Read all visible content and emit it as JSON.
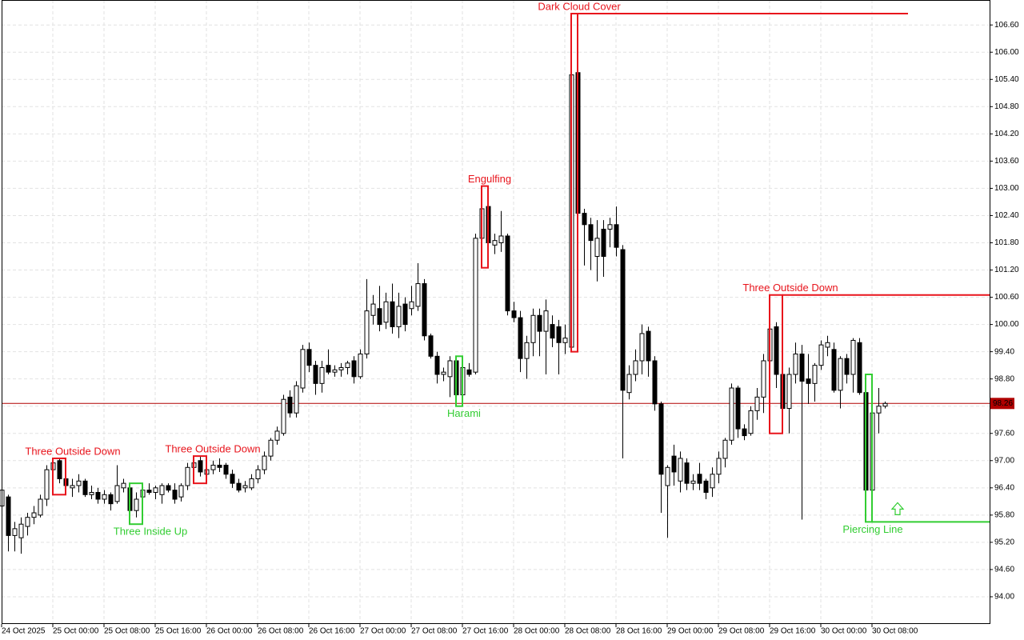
{
  "chart_data": {
    "type": "candlestick",
    "categories": [
      "24 Oct 2025",
      null,
      null,
      null,
      null,
      null,
      null,
      null,
      "25 Oct 00:00",
      null,
      null,
      null,
      null,
      null,
      null,
      null,
      "25 Oct 08:00",
      null,
      null,
      null,
      null,
      null,
      null,
      null,
      "25 Oct 16:00",
      null,
      null,
      null,
      null,
      null,
      null,
      null,
      "26 Oct 00:00",
      null,
      null,
      null,
      null,
      null,
      null,
      null,
      "26 Oct 08:00",
      null,
      null,
      null,
      null,
      null,
      null,
      null,
      "26 Oct 16:00",
      null,
      null,
      null,
      null,
      null,
      null,
      null,
      "27 Oct 00:00",
      null,
      null,
      null,
      null,
      null,
      null,
      null,
      "27 Oct 08:00",
      null,
      null,
      null,
      null,
      null,
      null,
      null,
      "27 Oct 16:00",
      null,
      null,
      null,
      null,
      null,
      null,
      null,
      "28 Oct 00:00",
      null,
      null,
      null,
      null,
      null,
      null,
      null,
      "28 Oct 08:00",
      null,
      null,
      null,
      null,
      null,
      null,
      null,
      "28 Oct 16:00",
      null,
      null,
      null,
      null,
      null,
      null,
      null,
      "29 Oct 00:00",
      null,
      null,
      null,
      null,
      null,
      null,
      null,
      "29 Oct 08:00",
      null,
      null,
      null,
      null,
      null,
      null,
      null,
      "29 Oct 16:00",
      null,
      null,
      null,
      null,
      null,
      null,
      null,
      "30 Oct 00:00",
      null,
      null,
      null,
      null,
      null,
      null,
      null,
      "30 Oct 08:00",
      null,
      null
    ],
    "open": [
      96.0,
      96.2,
      95.35,
      95.3,
      95.55,
      95.75,
      95.8,
      96.15,
      96.8,
      97.0,
      96.6,
      96.4,
      96.45,
      96.55,
      96.25,
      96.3,
      96.15,
      96.25,
      96.1,
      96.4,
      96.4,
      95.9,
      96.2,
      96.35,
      96.3,
      96.25,
      96.45,
      96.35,
      96.2,
      96.45,
      96.85,
      97.0,
      96.7,
      96.8,
      96.9,
      96.9,
      96.7,
      96.5,
      96.4,
      96.4,
      96.6,
      96.8,
      97.1,
      97.45,
      97.6,
      98.4,
      98.05,
      98.6,
      99.45,
      99.1,
      98.7,
      99.1,
      98.95,
      99.0,
      99.05,
      99.2,
      98.85,
      99.35,
      100.2,
      100.35,
      100.05,
      100.5,
      99.95,
      100.45,
      100.35,
      100.4,
      100.9,
      99.75,
      99.3,
      98.9,
      98.85,
      99.2,
      98.45,
      99.0,
      98.95,
      101.9,
      102.6,
      101.75,
      101.8,
      101.95,
      100.3,
      100.15,
      99.25,
      99.6,
      100.2,
      99.85,
      100.0,
      99.95,
      99.6,
      99.5,
      105.55,
      102.45,
      102.2,
      101.5,
      102.1,
      102.1,
      102.2,
      101.65,
      98.5,
      98.9,
      99.2,
      99.85,
      99.2,
      98.25,
      96.45,
      97.1,
      96.55,
      96.95,
      96.5,
      96.7,
      96.55,
      96.4,
      96.7,
      97.05,
      97.45,
      98.6,
      97.7,
      97.6,
      98.1,
      98.4,
      99.2,
      99.95,
      98.9,
      98.15,
      98.9,
      99.35,
      98.8,
      98.7,
      99.1,
      99.5,
      99.45,
      98.55,
      99.25,
      98.9,
      99.6,
      98.5,
      96.35,
      98.05,
      98.2
    ],
    "high": [
      96.45,
      96.25,
      95.65,
      95.75,
      95.85,
      96.0,
      96.25,
      96.9,
      97.05,
      97.05,
      96.75,
      96.6,
      96.7,
      96.6,
      96.45,
      96.4,
      96.35,
      96.3,
      96.9,
      96.6,
      96.5,
      96.3,
      96.45,
      96.5,
      96.45,
      96.5,
      96.5,
      96.5,
      96.5,
      96.95,
      97.05,
      97.1,
      96.9,
      97.0,
      97.05,
      96.95,
      96.8,
      96.6,
      96.55,
      96.7,
      96.9,
      97.2,
      97.5,
      97.75,
      98.45,
      98.55,
      98.75,
      99.55,
      99.6,
      99.2,
      99.2,
      99.45,
      99.1,
      99.15,
      99.2,
      99.3,
      99.45,
      101.0,
      100.65,
      100.85,
      100.7,
      100.9,
      100.7,
      100.6,
      100.85,
      101.35,
      101.0,
      99.8,
      99.4,
      99.05,
      99.3,
      99.3,
      99.15,
      99.15,
      102.0,
      102.7,
      103.05,
      102.0,
      102.5,
      102.0,
      100.5,
      100.3,
      99.75,
      100.35,
      100.35,
      100.55,
      100.2,
      100.1,
      100.0,
      106.85,
      106.85,
      102.55,
      102.35,
      102.3,
      102.3,
      102.35,
      102.6,
      101.75,
      99.1,
      99.45,
      100.0,
      99.95,
      99.3,
      98.3,
      96.9,
      97.35,
      97.2,
      97.05,
      96.7,
      96.95,
      96.6,
      96.85,
      97.2,
      97.5,
      98.7,
      98.65,
      97.8,
      98.2,
      98.6,
      99.35,
      100.65,
      100.05,
      99.4,
      99.05,
      99.6,
      99.55,
      99.35,
      99.15,
      99.65,
      99.75,
      99.6,
      99.3,
      99.35,
      99.7,
      99.7,
      98.9,
      98.1,
      98.6,
      98.3
    ],
    "low": [
      95.8,
      95.0,
      95.0,
      94.95,
      95.35,
      95.6,
      95.75,
      96.0,
      96.35,
      96.5,
      96.25,
      96.2,
      96.3,
      96.2,
      96.15,
      96.05,
      96.05,
      95.9,
      96.05,
      96.3,
      95.6,
      95.75,
      95.95,
      96.25,
      96.15,
      96.05,
      96.3,
      96.05,
      96.1,
      96.35,
      96.75,
      96.65,
      96.5,
      96.7,
      96.75,
      96.6,
      96.4,
      96.3,
      96.3,
      96.35,
      96.5,
      96.7,
      97.0,
      97.35,
      97.55,
      97.95,
      97.95,
      98.5,
      98.95,
      98.45,
      98.5,
      98.9,
      98.85,
      98.85,
      98.9,
      98.7,
      98.8,
      99.25,
      100.0,
      99.85,
      99.9,
      99.8,
      99.7,
      99.85,
      100.2,
      100.3,
      99.65,
      99.25,
      98.7,
      98.75,
      98.4,
      98.3,
      98.2,
      98.85,
      98.9,
      101.7,
      101.25,
      101.55,
      101.6,
      100.2,
      100.05,
      98.95,
      98.8,
      99.3,
      99.3,
      98.9,
      99.5,
      98.9,
      99.35,
      99.4,
      102.25,
      101.3,
      101.2,
      100.95,
      101.05,
      101.7,
      101.5,
      97.05,
      98.35,
      98.75,
      98.9,
      98.85,
      98.1,
      95.85,
      95.3,
      96.45,
      96.3,
      96.35,
      96.35,
      96.35,
      96.15,
      96.2,
      96.5,
      96.85,
      97.35,
      97.5,
      97.45,
      97.55,
      97.9,
      98.05,
      97.65,
      98.6,
      97.6,
      97.6,
      98.7,
      95.7,
      98.25,
      98.3,
      99.0,
      99.3,
      98.5,
      98.15,
      98.7,
      98.5,
      98.45,
      95.65,
      96.05,
      97.6,
      98.15
    ],
    "close": [
      96.35,
      95.35,
      95.5,
      95.6,
      95.75,
      95.85,
      96.15,
      96.8,
      96.95,
      96.6,
      96.45,
      96.45,
      96.55,
      96.25,
      96.3,
      96.15,
      96.25,
      96.05,
      96.45,
      96.5,
      95.9,
      96.15,
      96.35,
      96.3,
      96.4,
      96.45,
      96.35,
      96.15,
      96.45,
      96.85,
      96.95,
      96.75,
      96.8,
      96.9,
      96.85,
      96.7,
      96.5,
      96.35,
      96.45,
      96.6,
      96.8,
      97.1,
      97.45,
      97.65,
      98.35,
      98.05,
      98.65,
      99.45,
      99.1,
      98.7,
      99.05,
      98.95,
      99.0,
      99.05,
      99.15,
      98.85,
      99.35,
      100.3,
      100.45,
      100.0,
      100.5,
      99.95,
      100.4,
      100.0,
      100.5,
      100.9,
      99.75,
      99.3,
      98.9,
      98.95,
      99.2,
      98.45,
      99.05,
      98.9,
      101.9,
      102.55,
      101.8,
      101.85,
      101.95,
      100.3,
      100.15,
      99.25,
      99.6,
      100.2,
      99.85,
      100.3,
      99.7,
      99.6,
      99.7,
      105.5,
      102.45,
      102.2,
      101.85,
      101.9,
      101.5,
      102.2,
      101.7,
      98.55,
      98.9,
      99.2,
      99.8,
      99.2,
      98.25,
      96.7,
      96.85,
      96.75,
      97.05,
      96.5,
      96.55,
      96.5,
      96.3,
      96.7,
      97.05,
      97.45,
      98.6,
      97.7,
      97.55,
      98.1,
      98.4,
      99.2,
      99.9,
      98.9,
      98.15,
      98.9,
      99.35,
      98.75,
      98.7,
      99.1,
      99.55,
      99.6,
      98.55,
      99.25,
      98.9,
      99.65,
      98.5,
      96.35,
      98.05,
      98.2,
      98.26
    ],
    "ylim": [
      93.4,
      107.15
    ],
    "yticks": [
      {
        "value": 94.0,
        "label": "94.00"
      },
      {
        "value": 94.6,
        "label": "94.60"
      },
      {
        "value": 95.2,
        "label": "95.20"
      },
      {
        "value": 95.8,
        "label": "95.80"
      },
      {
        "value": 96.4,
        "label": "96.40"
      },
      {
        "value": 97.0,
        "label": "97.00"
      },
      {
        "value": 97.6,
        "label": "97.60"
      },
      {
        "value": 98.2,
        "label": "98.20"
      },
      {
        "value": 98.8,
        "label": "98.80"
      },
      {
        "value": 99.4,
        "label": "99.40"
      },
      {
        "value": 100.0,
        "label": "100.00"
      },
      {
        "value": 100.6,
        "label": "100.60"
      },
      {
        "value": 101.2,
        "label": "101.20"
      },
      {
        "value": 101.8,
        "label": "101.80"
      },
      {
        "value": 102.4,
        "label": "102.40"
      },
      {
        "value": 103.0,
        "label": "103.00"
      },
      {
        "value": 103.6,
        "label": "103.60"
      },
      {
        "value": 104.2,
        "label": "104.20"
      },
      {
        "value": 104.8,
        "label": "104.80"
      },
      {
        "value": 105.4,
        "label": "105.40"
      },
      {
        "value": 106.0,
        "label": "106.00"
      },
      {
        "value": 106.6,
        "label": "106.60"
      }
    ],
    "grid": true,
    "up_color": "#ffffff",
    "down_color": "#000000",
    "last_price_color": "#b00000",
    "annotations": [
      {
        "text": "Three Outside Down",
        "color": "#e8141c"
      },
      {
        "text": "Three Inside Up",
        "color": "#32cd32"
      },
      {
        "text": "Three Outside Down",
        "color": "#e8141c"
      },
      {
        "text": "Harami",
        "color": "#32cd32"
      },
      {
        "text": "Engulfing",
        "color": "#e8141c"
      },
      {
        "text": "Dark Cloud Cover",
        "color": "#e8141c"
      },
      {
        "text": "Three Outside Down",
        "color": "#e8141c"
      },
      {
        "text": "Piercing Line",
        "color": "#32cd32"
      }
    ]
  }
}
